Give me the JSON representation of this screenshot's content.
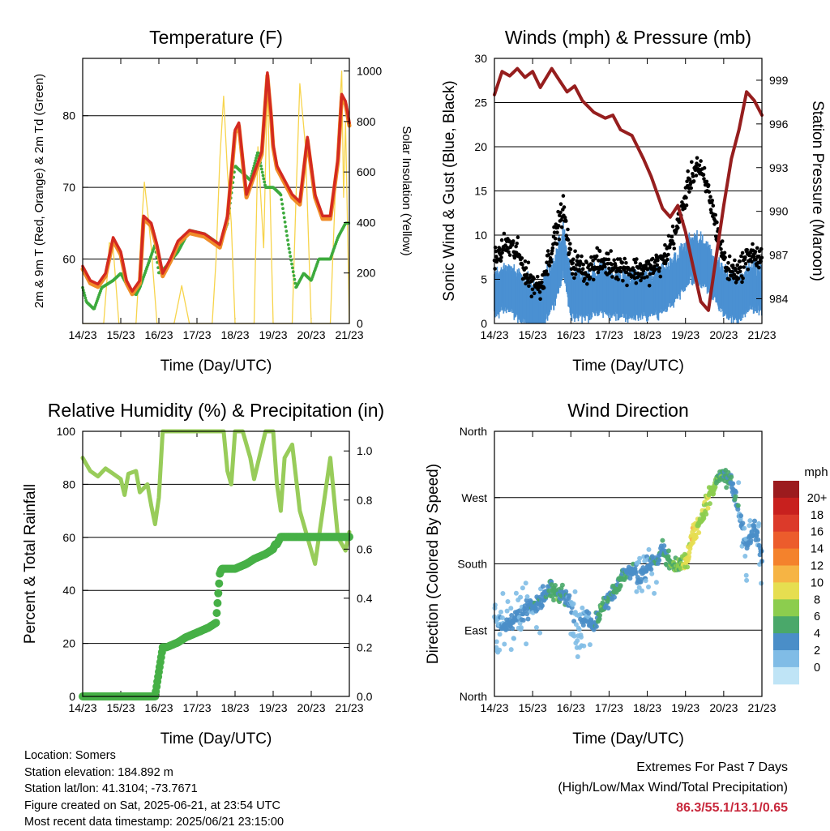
{
  "colors": {
    "temp_2m": "#d42a20",
    "temp_9m": "#f08c28",
    "dewpoint": "#3daa3d",
    "solar": "#f7d44c",
    "wind_sonic": "#4a90d2",
    "gust": "#000000",
    "pressure": "#961e1e",
    "humidity": "#98cc5a",
    "precip": "#46b046",
    "extremes": "#c8283c"
  },
  "time_ticks": [
    "14/23",
    "15/23",
    "16/23",
    "17/23",
    "18/23",
    "19/23",
    "20/23",
    "21/23"
  ],
  "chart_data": [
    {
      "id": "temperature",
      "type": "line",
      "title": "Temperature (F)",
      "xlabel": "Time (Day/UTC)",
      "ylabel": "2m & 9m T (Red, Orange) & 2m Td (Green)",
      "y2label": "Solar Insolation (Yellow)",
      "xlim": [
        0,
        7
      ],
      "ylim": [
        51,
        88
      ],
      "y2lim": [
        0,
        1050
      ],
      "yticks": [
        60,
        70,
        80
      ],
      "y2ticks": [
        0,
        200,
        400,
        600,
        800,
        1000
      ],
      "grid": true,
      "series": [
        {
          "key": "temp",
          "axis": "left",
          "x": [
            0,
            0.2,
            0.4,
            0.6,
            0.8,
            1.0,
            1.15,
            1.3,
            1.5,
            1.6,
            1.8,
            1.95,
            2.1,
            2.3,
            2.5,
            2.8,
            3.2,
            3.6,
            3.8,
            4.0,
            4.1,
            4.2,
            4.3,
            4.5,
            4.7,
            4.85,
            4.95,
            5.0,
            5.1,
            5.3,
            5.5,
            5.7,
            5.9,
            6.1,
            6.3,
            6.5,
            6.7,
            6.8,
            6.9,
            7.0
          ],
          "y": [
            59,
            57,
            56.5,
            58,
            63,
            61,
            57,
            55.5,
            57,
            66,
            65,
            62,
            58,
            60,
            62.5,
            64,
            63.5,
            62,
            66,
            78,
            79,
            74,
            69,
            72,
            75,
            86,
            80,
            76,
            73,
            71,
            69,
            68,
            77,
            69,
            66,
            66,
            74,
            83,
            82,
            79
          ]
        },
        {
          "key": "dew",
          "axis": "left",
          "x": [
            0,
            0.1,
            0.3,
            0.5,
            0.8,
            1.0,
            1.2,
            1.4,
            1.5,
            1.7,
            1.9,
            2.0,
            2.2,
            2.5,
            2.8,
            3.2,
            3.6,
            3.8,
            4.0,
            4.2,
            4.4,
            4.6,
            4.8,
            5.0,
            5.2,
            5.4,
            5.6,
            5.8,
            6.0,
            6.2,
            6.5,
            6.7,
            6.9,
            7.0
          ],
          "y": [
            56,
            54,
            53,
            56,
            57,
            58,
            56,
            55,
            56,
            59,
            62,
            58,
            59,
            61,
            64,
            63.5,
            62,
            65,
            73,
            72,
            71,
            75,
            70,
            70,
            69,
            62,
            56,
            58,
            57,
            60,
            60,
            63,
            65,
            65
          ]
        },
        {
          "key": "solar",
          "axis": "right",
          "x": [
            0,
            0.55,
            0.65,
            0.7,
            0.8,
            0.95,
            1.4,
            1.55,
            1.62,
            1.7,
            1.8,
            1.95,
            2.2,
            2.4,
            2.6,
            2.8,
            3.4,
            3.5,
            3.6,
            3.7,
            3.8,
            3.9,
            4.0,
            4.3,
            4.5,
            4.6,
            4.75,
            4.85,
            5.0,
            5.3,
            5.5,
            5.6,
            5.7,
            5.85,
            6.0,
            6.3,
            6.5,
            6.65,
            6.8,
            6.85,
            6.9,
            7.0
          ],
          "y": [
            0,
            0,
            200,
            320,
            300,
            0,
            0,
            400,
            560,
            450,
            300,
            0,
            0,
            0,
            150,
            0,
            0,
            250,
            650,
            900,
            600,
            400,
            0,
            0,
            0,
            700,
            300,
            950,
            0,
            0,
            0,
            500,
            950,
            700,
            0,
            0,
            0,
            600,
            1000,
            500,
            800,
            0
          ]
        }
      ]
    },
    {
      "id": "winds",
      "type": "line",
      "title": "Winds (mph) & Pressure (mb)",
      "xlabel": "Time (Day/UTC)",
      "ylabel": "Sonic Wind & Gust (Blue, Black)",
      "y2label": "Station Pressure (Maroon)",
      "xlim": [
        0,
        7
      ],
      "ylim": [
        0,
        30
      ],
      "y2lim": [
        982.3,
        1000.5
      ],
      "yticks": [
        0,
        5,
        10,
        15,
        20,
        25,
        30
      ],
      "y2ticks": [
        984,
        987,
        990,
        993,
        996,
        999
      ],
      "grid": true,
      "series": [
        {
          "key": "wind",
          "axis": "left",
          "x": [
            0,
            0.3,
            0.6,
            0.9,
            1.2,
            1.6,
            1.8,
            2.0,
            2.4,
            2.8,
            3.2,
            3.6,
            4.0,
            4.4,
            4.8,
            5.1,
            5.3,
            5.6,
            5.9,
            6.1,
            6.4,
            6.7,
            7.0
          ],
          "y": [
            3,
            4,
            3,
            2,
            1.5,
            5,
            8,
            3,
            3,
            3.5,
            3,
            3,
            3,
            3.5,
            5,
            7,
            7,
            6,
            4,
            3,
            2.5,
            4,
            3.5
          ]
        },
        {
          "key": "gust",
          "axis": "left",
          "x": [
            0,
            0.3,
            0.6,
            0.9,
            1.2,
            1.6,
            1.8,
            2.0,
            2.4,
            2.8,
            3.2,
            3.6,
            4.0,
            4.4,
            4.8,
            5.1,
            5.3,
            5.6,
            5.9,
            6.1,
            6.4,
            6.7,
            7.0
          ],
          "y": [
            7,
            9,
            8,
            5,
            4,
            10,
            13,
            7,
            6,
            7,
            6.5,
            6,
            6,
            7,
            11,
            16,
            18,
            15,
            9,
            6,
            6,
            8,
            7
          ]
        },
        {
          "key": "pressure",
          "axis": "right",
          "x": [
            0,
            0.2,
            0.4,
            0.6,
            0.8,
            1.0,
            1.2,
            1.5,
            1.7,
            1.9,
            2.1,
            2.3,
            2.6,
            2.9,
            3.1,
            3.3,
            3.6,
            3.9,
            4.1,
            4.4,
            4.6,
            4.8,
            5.0,
            5.2,
            5.4,
            5.6,
            5.8,
            6.0,
            6.2,
            6.4,
            6.6,
            6.8,
            7.0
          ],
          "y": [
            998,
            999.6,
            999.3,
            999.8,
            999.2,
            999.6,
            998.5,
            999.8,
            999,
            998.2,
            998.6,
            997.6,
            996.8,
            996.4,
            996.6,
            995.6,
            995.2,
            993.6,
            992.4,
            990.2,
            989.6,
            990.4,
            988.6,
            986.2,
            983.8,
            983.2,
            986.8,
            990.4,
            993.6,
            995.6,
            998.2,
            997.6,
            996.6
          ]
        }
      ]
    },
    {
      "id": "humidity",
      "type": "line",
      "title": "Relative Humidity (%) & Precipitation (in)",
      "xlabel": "Time (Day/UTC)",
      "ylabel": "Percent & Total Rainfall",
      "xlim": [
        0,
        7
      ],
      "ylim": [
        0,
        100
      ],
      "y2lim": [
        0,
        1.08
      ],
      "yticks": [
        0,
        20,
        40,
        60,
        80,
        100
      ],
      "y2ticks": [
        "0.0",
        "0.2",
        "0.4",
        "0.6",
        "0.8",
        "1.0"
      ],
      "grid": true,
      "series": [
        {
          "key": "rh",
          "axis": "left",
          "x": [
            0,
            0.2,
            0.4,
            0.6,
            0.8,
            1.0,
            1.1,
            1.2,
            1.4,
            1.5,
            1.7,
            1.8,
            1.9,
            2.0,
            2.1,
            2.2,
            2.5,
            3.0,
            3.5,
            3.7,
            3.8,
            3.9,
            4.0,
            4.2,
            4.4,
            4.5,
            4.8,
            5.0,
            5.1,
            5.2,
            5.3,
            5.5,
            5.7,
            5.9,
            6.1,
            6.3,
            6.5,
            6.7,
            6.9,
            7.0
          ],
          "y": [
            90,
            85,
            83,
            86,
            84,
            82,
            76,
            84,
            85,
            77,
            80,
            72,
            65,
            75,
            100,
            100,
            100,
            100,
            100,
            100,
            85,
            80,
            100,
            100,
            90,
            82,
            100,
            100,
            80,
            70,
            90,
            95,
            70,
            60,
            50,
            70,
            90,
            60,
            55,
            62
          ]
        },
        {
          "key": "precip",
          "axis": "right",
          "x": [
            0,
            1.0,
            1.9,
            2.0,
            2.1,
            2.2,
            2.5,
            2.7,
            3.0,
            3.3,
            3.5,
            3.6,
            3.65,
            3.7,
            4.0,
            4.3,
            4.5,
            4.8,
            5.0,
            5.05,
            5.1,
            5.2,
            5.3,
            5.5,
            5.8,
            6.0,
            6.5,
            7.0
          ],
          "y": [
            0,
            0,
            0,
            0.1,
            0.2,
            0.2,
            0.22,
            0.24,
            0.26,
            0.28,
            0.3,
            0.5,
            0.52,
            0.52,
            0.52,
            0.54,
            0.56,
            0.58,
            0.6,
            0.62,
            0.62,
            0.65,
            0.65,
            0.65,
            0.65,
            0.65,
            0.65,
            0.65
          ]
        }
      ]
    },
    {
      "id": "wind_direction",
      "type": "scatter",
      "title": "Wind Direction",
      "xlabel": "Time (Day/UTC)",
      "ylabel": "Direction (Colored By Speed)",
      "xlim": [
        0,
        7
      ],
      "ylim": [
        0,
        360
      ],
      "yticklabels": [
        "North",
        "East",
        "South",
        "West",
        "North"
      ],
      "grid": true,
      "colorbar": {
        "title": "mph",
        "labels": [
          "20+",
          "18",
          "16",
          "14",
          "12",
          "10",
          "8",
          "6",
          "4",
          "2",
          "0"
        ],
        "colors": [
          "#9c1b1e",
          "#c8201e",
          "#dc3a2a",
          "#ec5c2c",
          "#f4822c",
          "#f6b444",
          "#e6de50",
          "#8ccd4e",
          "#4aa86a",
          "#4a8ec8",
          "#80bce6",
          "#bfe4f6"
        ]
      },
      "series": [
        {
          "key": "dir",
          "x": [
            0,
            0.2,
            0.4,
            0.6,
            0.8,
            1.0,
            1.2,
            1.4,
            1.6,
            1.8,
            2.0,
            2.2,
            2.4,
            2.6,
            2.8,
            3.0,
            3.2,
            3.4,
            3.6,
            3.8,
            4.0,
            4.2,
            4.4,
            4.6,
            4.8,
            5.0,
            5.2,
            5.4,
            5.6,
            5.8,
            6.0,
            6.2,
            6.4,
            6.6,
            6.8,
            7.0
          ],
          "y": [
            90,
            95,
            100,
            110,
            115,
            120,
            130,
            145,
            140,
            140,
            120,
            100,
            110,
            100,
            120,
            130,
            150,
            165,
            170,
            160,
            175,
            185,
            200,
            180,
            175,
            180,
            220,
            240,
            270,
            290,
            300,
            290,
            250,
            200,
            230,
            190
          ],
          "speed": [
            2,
            3,
            4,
            3,
            3,
            4,
            4,
            5,
            6,
            5,
            3,
            2,
            3,
            4,
            6,
            5,
            6,
            5,
            4,
            3,
            3,
            4,
            5,
            6,
            7,
            9,
            11,
            8,
            9,
            7,
            6,
            5,
            4,
            3,
            4,
            3
          ]
        }
      ]
    }
  ],
  "info": {
    "location": "Location: Somers",
    "elevation": "Station elevation: 184.892 m",
    "latlon": "Station lat/lon: 41.3104; -73.7671",
    "created": "Figure created on Sat, 2025-06-21, at 23:54 UTC",
    "recent": "Most recent data timestamp: 2025/06/21 23:15:00"
  },
  "extremes": {
    "title": "Extremes For Past 7 Days",
    "subtitle": "(High/Low/Max Wind/Total Precipitation)",
    "values": "86.3/55.1/13.1/0.65"
  }
}
